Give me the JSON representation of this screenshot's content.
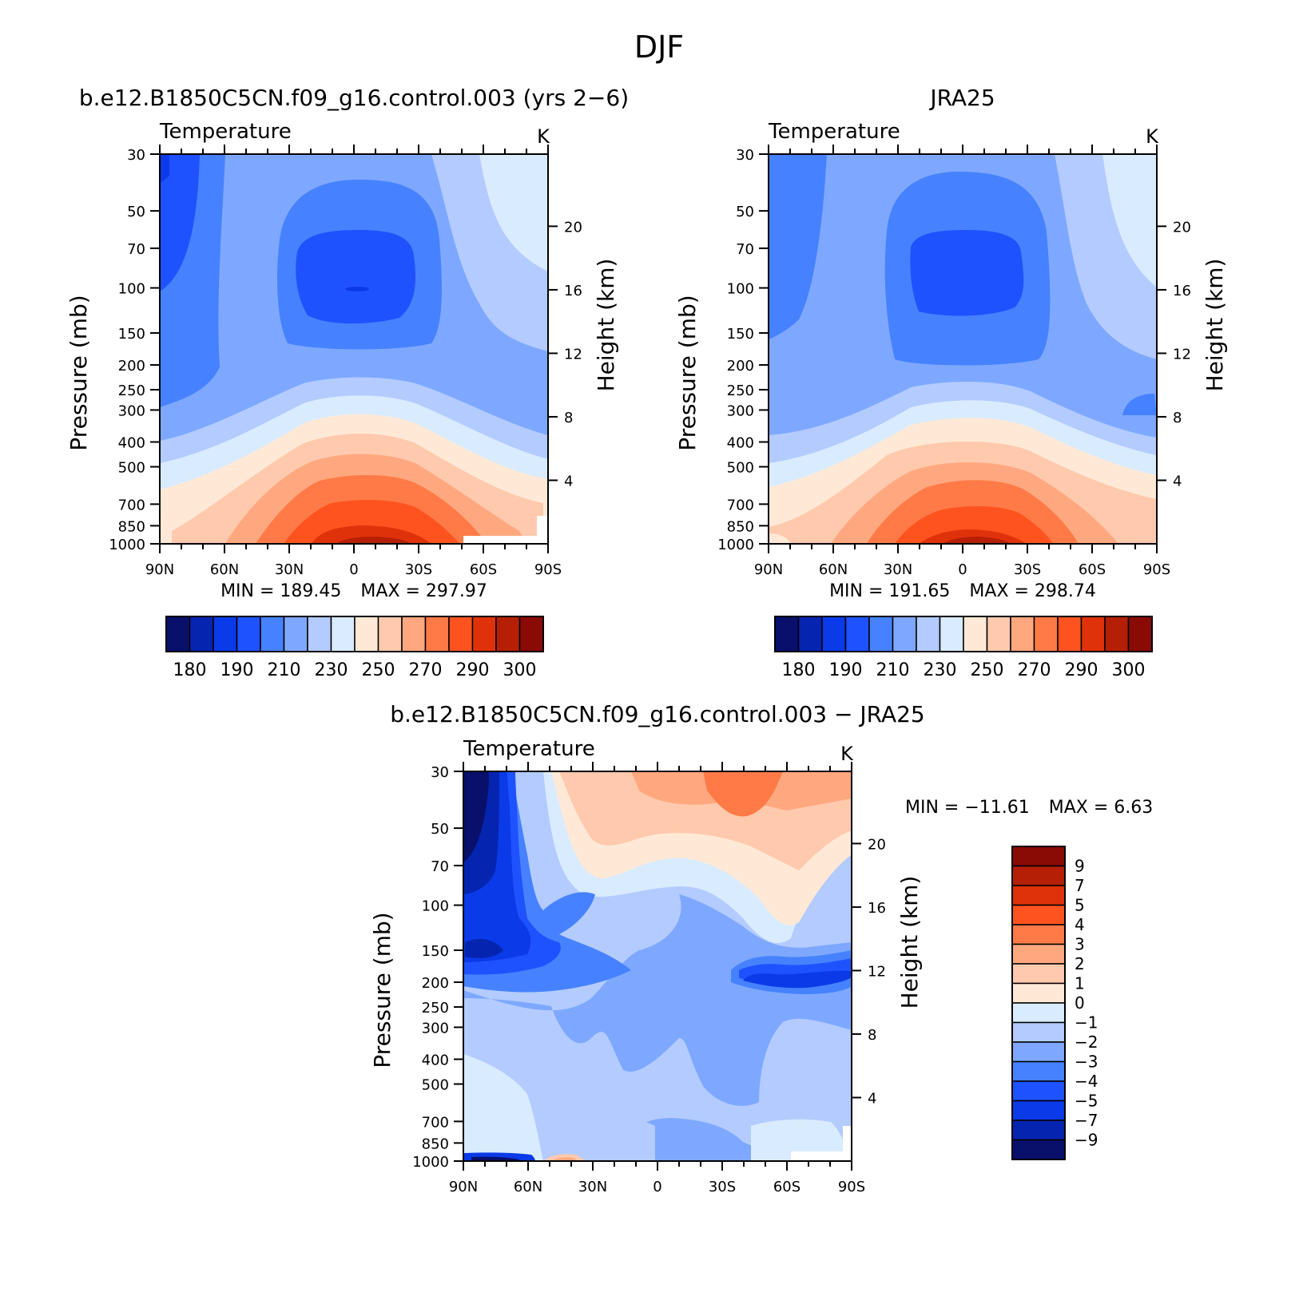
{
  "figure": {
    "season": "DJF"
  },
  "scales": {
    "abs_levels": [
      180,
      185,
      190,
      200,
      210,
      220,
      230,
      240,
      250,
      260,
      270,
      280,
      290,
      295,
      300
    ],
    "abs_labels": [
      "180",
      "190",
      "210",
      "230",
      "250",
      "270",
      "290",
      "300"
    ],
    "abs_colors": [
      "#08106b",
      "#0525b0",
      "#0b3ae8",
      "#1f52ff",
      "#4682ff",
      "#7ea8ff",
      "#b3cbff",
      "#d9ebff",
      "#ffe9d6",
      "#ffc9ad",
      "#ffa880",
      "#ff7a47",
      "#ff531f",
      "#e0320a",
      "#b51f05",
      "#8a0a05"
    ],
    "diff_levels": [
      -9,
      -7,
      -5,
      -4,
      -3,
      -2,
      -1,
      0,
      1,
      2,
      3,
      4,
      5,
      7,
      9
    ],
    "diff_labels": [
      "9",
      "7",
      "5",
      "4",
      "3",
      "2",
      "1",
      "0",
      "−1",
      "−2",
      "−3",
      "−4",
      "−5",
      "−7",
      "−9"
    ],
    "diff_colors": [
      "#08106b",
      "#0525b0",
      "#0b3ae8",
      "#1f52ff",
      "#4682ff",
      "#7ea8ff",
      "#b3cbff",
      "#d9ebff",
      "#ffe9d6",
      "#ffc9ad",
      "#ffa880",
      "#ff7a47",
      "#ff531f",
      "#e0320a",
      "#b51f05",
      "#8a0a05"
    ]
  },
  "axes": {
    "pressure_ticks": [
      "30",
      "50",
      "70",
      "100",
      "150",
      "200",
      "250",
      "300",
      "400",
      "500",
      "700",
      "850",
      "1000"
    ],
    "height_ticks": [
      "20",
      "16",
      "12",
      "8",
      "4"
    ],
    "lat_ticks": [
      "90N",
      "60N",
      "30N",
      "0",
      "30S",
      "60S",
      "90S"
    ],
    "ylabel_left": "Pressure (mb)",
    "ylabel_right": "Height (km)",
    "panel_label": "Temperature",
    "units": "K"
  },
  "chart_data": [
    {
      "type": "heatmap",
      "title": "b.e12.B1850C5CN.f09_g16.control.003 (yrs 2−6)",
      "variable": "Temperature",
      "units": "K",
      "x": [
        "90N",
        "60N",
        "30N",
        "0",
        "30S",
        "60S",
        "90S"
      ],
      "y_pressure_mb": [
        30,
        50,
        70,
        100,
        150,
        200,
        250,
        300,
        400,
        500,
        700,
        850,
        1000
      ],
      "ylim": [
        1000,
        30
      ],
      "min_label": "MIN = 189.45",
      "max_label": "MAX = 297.97",
      "min": 189.45,
      "max": 297.97
    },
    {
      "type": "heatmap",
      "title": "JRA25",
      "variable": "Temperature",
      "units": "K",
      "x": [
        "90N",
        "60N",
        "30N",
        "0",
        "30S",
        "60S",
        "90S"
      ],
      "y_pressure_mb": [
        30,
        50,
        70,
        100,
        150,
        200,
        250,
        300,
        400,
        500,
        700,
        850,
        1000
      ],
      "ylim": [
        1000,
        30
      ],
      "min_label": "MIN = 191.65",
      "max_label": "MAX = 298.74",
      "min": 191.65,
      "max": 298.74
    },
    {
      "type": "heatmap",
      "title": "b.e12.B1850C5CN.f09_g16.control.003 − JRA25",
      "variable": "Temperature",
      "units": "K",
      "x": [
        "90N",
        "60N",
        "30N",
        "0",
        "30S",
        "60S",
        "90S"
      ],
      "y_pressure_mb": [
        30,
        50,
        70,
        100,
        150,
        200,
        250,
        300,
        400,
        500,
        700,
        850,
        1000
      ],
      "ylim": [
        1000,
        30
      ],
      "min_label": "MIN = −11.61",
      "max_label": "MAX = 6.63",
      "min": -11.61,
      "max": 6.63
    }
  ]
}
